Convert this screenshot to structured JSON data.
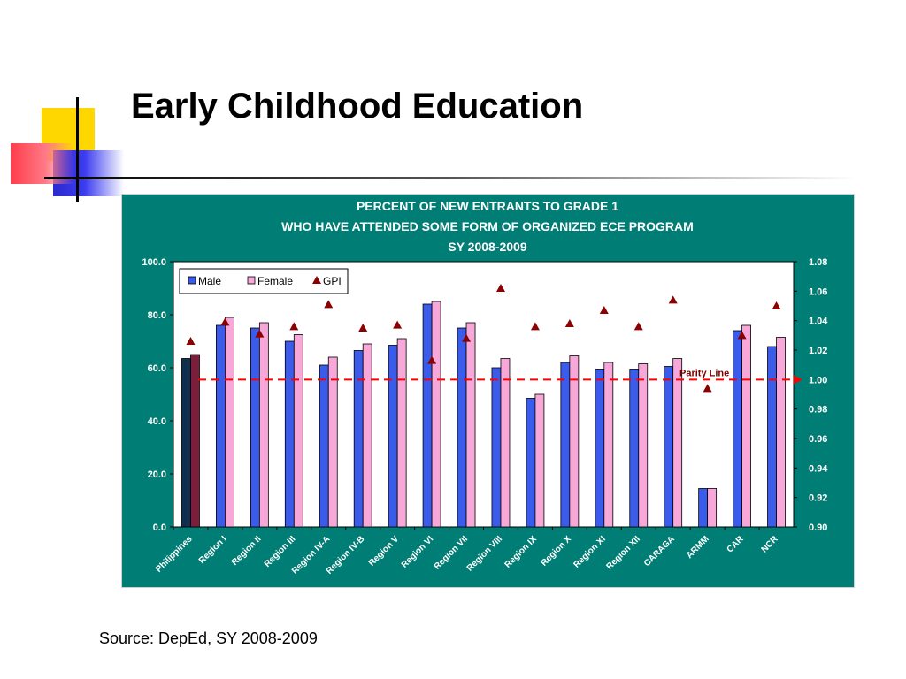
{
  "slide": {
    "title": "Early Childhood Education",
    "source": "Source: DepEd, SY 2008-2009"
  },
  "colors": {
    "chart_background": "#007d74",
    "male": "#3b5bea",
    "female": "#f7a8d8",
    "philippines_male": "#0f2f4f",
    "philippines_female": "#7a1e3c",
    "gpi": "#8b0000",
    "parity_line": "#ff0000"
  },
  "chart_data": {
    "type": "bar",
    "title_lines": [
      "PERCENT OF NEW ENTRANTS TO GRADE 1",
      "WHO HAVE ATTENDED SOME FORM OF ORGANIZED ECE PROGRAM",
      "SY 2008-2009"
    ],
    "categories": [
      "Philippines",
      "Region I",
      "Region II",
      "Region III",
      "Region IV-A",
      "Region IV-B",
      "Region V",
      "Region VI",
      "Region VII",
      "Region VIII",
      "Region IX",
      "Region X",
      "Region XI",
      "Region XII",
      "CARAGA",
      "ARMM",
      "CAR",
      "NCR"
    ],
    "series": [
      {
        "name": "Male",
        "axis": "left",
        "type": "bar",
        "values": [
          63.5,
          76,
          75,
          70,
          61,
          66.5,
          68.5,
          84,
          75,
          60,
          48.5,
          62,
          59.5,
          59.5,
          60.5,
          14.5,
          74,
          68
        ]
      },
      {
        "name": "Female",
        "axis": "left",
        "type": "bar",
        "values": [
          65,
          79,
          77,
          72.5,
          64,
          69,
          71,
          85,
          77,
          63.5,
          50,
          64.5,
          62,
          61.5,
          63.5,
          14.5,
          76,
          71.5
        ]
      },
      {
        "name": "GPI",
        "axis": "right",
        "type": "scatter",
        "marker": "triangle",
        "values": [
          1.026,
          1.039,
          1.031,
          1.036,
          1.051,
          1.035,
          1.037,
          1.013,
          1.028,
          1.062,
          1.036,
          1.038,
          1.047,
          1.036,
          1.054,
          0.994,
          1.03,
          1.05
        ]
      }
    ],
    "ylim": [
      0,
      100
    ],
    "yticks": [
      "0.0",
      "20.0",
      "40.0",
      "60.0",
      "80.0",
      "100.0"
    ],
    "y2lim": [
      0.9,
      1.08
    ],
    "y2ticks": [
      "0.90",
      "0.92",
      "0.94",
      "0.96",
      "0.98",
      "1.00",
      "1.02",
      "1.04",
      "1.06",
      "1.08"
    ],
    "reference_line": {
      "axis": "right",
      "value": 1.0,
      "label": "Parity Line"
    },
    "legend": {
      "placement": "top-left",
      "entries": [
        "Male",
        "Female",
        "GPI"
      ]
    },
    "grid": false
  }
}
